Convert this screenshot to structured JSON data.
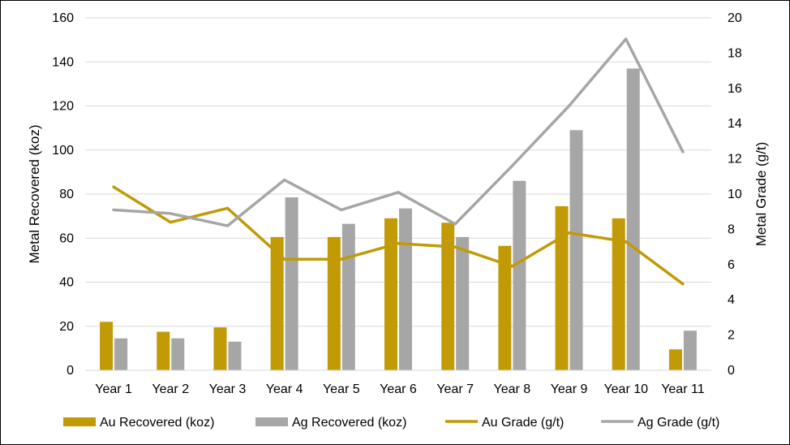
{
  "chart_data": {
    "type": "bar",
    "categories": [
      "Year 1",
      "Year 2",
      "Year 3",
      "Year 4",
      "Year 5",
      "Year 6",
      "Year 7",
      "Year 8",
      "Year 9",
      "Year 10",
      "Year 11"
    ],
    "series": [
      {
        "name": "Au Recovered (koz)",
        "kind": "bar",
        "axis": "left",
        "color": "#C19A06",
        "values": [
          22,
          17.5,
          19.5,
          60.5,
          60.5,
          69,
          67,
          56.5,
          74.5,
          69,
          9.5
        ]
      },
      {
        "name": "Ag Recovered (koz)",
        "kind": "bar",
        "axis": "left",
        "color": "#A6A6A6",
        "values": [
          14.5,
          14.5,
          13,
          78.5,
          66.5,
          73.5,
          60.5,
          86,
          109,
          137,
          18
        ]
      },
      {
        "name": "Au Grade (g/t)",
        "kind": "line",
        "axis": "right",
        "color": "#C19A06",
        "values": [
          10.4,
          8.4,
          9.2,
          6.3,
          6.3,
          7.2,
          7.0,
          5.9,
          7.8,
          7.3,
          4.9
        ]
      },
      {
        "name": "Ag Grade (g/t)",
        "kind": "line",
        "axis": "right",
        "color": "#A6A6A6",
        "values": [
          9.1,
          8.9,
          8.2,
          10.8,
          9.1,
          10.1,
          8.3,
          11.6,
          15.0,
          18.8,
          12.4
        ]
      }
    ],
    "ylabel": "Metal Recovered (koz)",
    "y2label": "Metal Grade (g/t)",
    "ylim": [
      0,
      160
    ],
    "yticks": [
      0,
      20,
      40,
      60,
      80,
      100,
      120,
      140,
      160
    ],
    "y2lim": [
      0,
      20
    ],
    "y2ticks": [
      0,
      2,
      4,
      6,
      8,
      10,
      12,
      14,
      16,
      18,
      20
    ],
    "grid": true,
    "legend": "bottom"
  }
}
